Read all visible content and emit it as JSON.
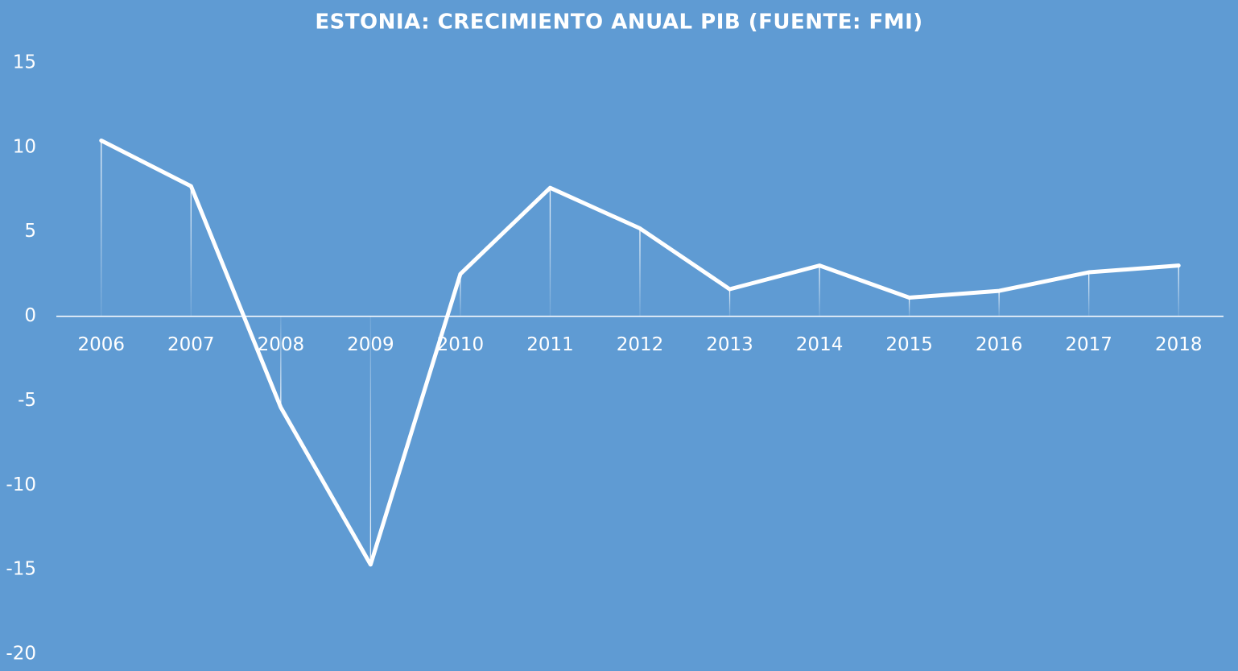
{
  "chart_data": {
    "type": "line",
    "title": "ESTONIA: CRECIMIENTO ANUAL PIB (FUENTE: FMI)",
    "categories": [
      "2006",
      "2007",
      "2008",
      "2009",
      "2010",
      "2011",
      "2012",
      "2013",
      "2014",
      "2015",
      "2016",
      "2017",
      "2018"
    ],
    "values": [
      10.4,
      7.7,
      -5.4,
      -14.7,
      2.5,
      7.6,
      5.2,
      1.6,
      3.0,
      1.1,
      1.5,
      2.6,
      3.0
    ],
    "color": "#ffffff",
    "drop_lines": true,
    "ylim": [
      -20,
      15
    ],
    "yticks": [
      -20,
      -15,
      -10,
      -5,
      0,
      5,
      10,
      15
    ]
  }
}
